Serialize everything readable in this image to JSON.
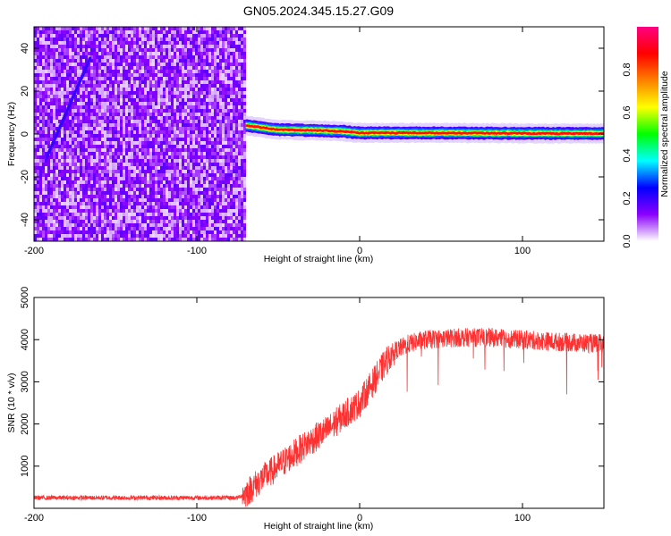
{
  "title": "GN05.2024.345.15.27.G09",
  "chart_data": [
    {
      "type": "heatmap",
      "xlabel": "Height of straight line (km)",
      "ylabel": "Frequency (Hz)",
      "xlim": [
        -200,
        150
      ],
      "ylim": [
        -50,
        50
      ],
      "x_ticks": [
        -200,
        -100,
        0,
        100
      ],
      "x_tick_labels": [
        "-200",
        "-100",
        "0",
        "100"
      ],
      "y_ticks": [
        -40,
        -20,
        0,
        20,
        40
      ],
      "y_tick_labels": [
        "-40",
        "-20",
        "0",
        "20",
        "40"
      ],
      "colorbar": {
        "label": "Normalized spectral amplitude",
        "range": [
          0,
          1
        ],
        "ticks": [
          0.0,
          0.2,
          0.4,
          0.6,
          0.8
        ],
        "tick_labels": [
          "0.0",
          "0.2",
          "0.4",
          "0.6",
          "0.8"
        ],
        "colors": [
          "#ffffff",
          "#8b00ff",
          "#0000ff",
          "#00ffff",
          "#00ff00",
          "#ffff00",
          "#ff8000",
          "#ff0000",
          "#ff0080"
        ]
      },
      "noise_region_x": [
        -200,
        -70
      ],
      "ridge": [
        {
          "x": -70,
          "y": 4
        },
        {
          "x": -50,
          "y": 2
        },
        {
          "x": -20,
          "y": 1.5
        },
        {
          "x": -10,
          "y": 1.2
        },
        {
          "x": 0,
          "y": 0.5
        },
        {
          "x": 50,
          "y": 0.5
        },
        {
          "x": 100,
          "y": 0.3
        },
        {
          "x": 150,
          "y": 0.2
        }
      ],
      "grid": false
    },
    {
      "type": "line",
      "xlabel": "Height of straight line (km)",
      "ylabel": "SNR (10 * v/v)",
      "xlim": [
        -200,
        150
      ],
      "ylim": [
        0,
        5000
      ],
      "x_ticks": [
        -200,
        -100,
        0,
        100
      ],
      "x_tick_labels": [
        "-200",
        "-100",
        "0",
        "100"
      ],
      "y_ticks": [
        1000,
        2000,
        3000,
        4000,
        5000
      ],
      "y_tick_labels": [
        "1000",
        "2000",
        "3000",
        "4000",
        "5000"
      ],
      "line_color": "#ff3030",
      "series": [
        {
          "x": [
            -200,
            -150,
            -100,
            -75,
            -70,
            -60,
            -50,
            -40,
            -30,
            -20,
            -10,
            0,
            10,
            20,
            30,
            40,
            60,
            80,
            100,
            120,
            150
          ],
          "values": [
            250,
            250,
            250,
            250,
            350,
            700,
            1000,
            1300,
            1600,
            1850,
            2200,
            2500,
            3100,
            3700,
            3900,
            4000,
            4050,
            4050,
            4000,
            3950,
            3900
          ]
        }
      ],
      "grid": false
    }
  ]
}
